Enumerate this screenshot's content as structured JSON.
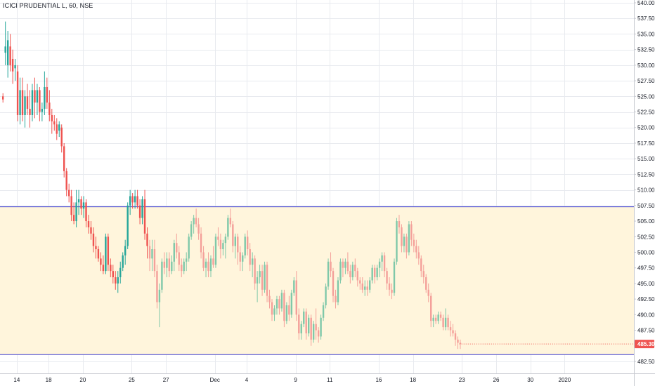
{
  "header": {
    "title": "ICICI PRUDENTIAL L, 60, NSE"
  },
  "colors": {
    "up": "#7fc8a9",
    "up_strong": "#26a69a",
    "down": "#f4a09a",
    "down_strong": "#ef5350",
    "zone_fill": "#fff5dc",
    "zone_line": "#3f3fcf",
    "last_price": "#ef5350",
    "grid": "#e8eaef",
    "axis_line": "#c8cad0",
    "text": "#131722"
  },
  "price_label": "485.30",
  "chart_data": {
    "type": "candlestick",
    "title": "ICICI PRUDENTIAL L, 60, NSE",
    "ylim": [
      481.5,
      540.0
    ],
    "y_ticks": [
      "540.00",
      "537.50",
      "535.00",
      "532.50",
      "530.00",
      "527.50",
      "525.00",
      "522.50",
      "520.00",
      "517.50",
      "515.00",
      "512.50",
      "510.00",
      "507.50",
      "505.00",
      "502.50",
      "500.00",
      "497.50",
      "495.00",
      "492.50",
      "490.00",
      "487.50",
      "485.00",
      "482.50"
    ],
    "x_ticks": [
      {
        "label": "14",
        "i": 6
      },
      {
        "label": "18",
        "i": 19
      },
      {
        "label": "20",
        "i": 33
      },
      {
        "label": "25",
        "i": 53
      },
      {
        "label": "27",
        "i": 67
      },
      {
        "label": "Dec",
        "i": 87
      },
      {
        "label": "4",
        "i": 100
      },
      {
        "label": "9",
        "i": 120
      },
      {
        "label": "11",
        "i": 134
      },
      {
        "label": "16",
        "i": 154
      },
      {
        "label": "18",
        "i": 168
      },
      {
        "label": "23",
        "i": 188
      },
      {
        "label": "26",
        "i": 202
      },
      {
        "label": "30",
        "i": 216
      },
      {
        "label": "2020",
        "i": 230
      }
    ],
    "zone": {
      "top": 507.3,
      "bottom": 483.6
    },
    "last_price": 485.3,
    "ohlc": [
      [
        525,
        525.5,
        524,
        524.5
      ],
      [
        532,
        537,
        530,
        533
      ],
      [
        530,
        535.5,
        528,
        534
      ],
      [
        533,
        535,
        529,
        530
      ],
      [
        531,
        532.5,
        527,
        529
      ],
      [
        529.5,
        531,
        527.5,
        530
      ],
      [
        529,
        530,
        521,
        522
      ],
      [
        522,
        528,
        520.5,
        526
      ],
      [
        526,
        528,
        521,
        522
      ],
      [
        522,
        526,
        520,
        525
      ],
      [
        525,
        527,
        522,
        523
      ],
      [
        523,
        526,
        520,
        522
      ],
      [
        522,
        527,
        521,
        526
      ],
      [
        526,
        528,
        521.5,
        524
      ],
      [
        524,
        527,
        522,
        526
      ],
      [
        526,
        526.5,
        521,
        522.5
      ],
      [
        522.5,
        524,
        521,
        523
      ],
      [
        523,
        529,
        522,
        526.5
      ],
      [
        526.5,
        528,
        523,
        524
      ],
      [
        524,
        526,
        521,
        522
      ],
      [
        522,
        523,
        519,
        521
      ],
      [
        521,
        522,
        519.5,
        520.5
      ],
      [
        520.5,
        521.5,
        518,
        519
      ],
      [
        519.5,
        521,
        518.5,
        520.5
      ],
      [
        520,
        520.5,
        516,
        517
      ],
      [
        517,
        517.5,
        512,
        513
      ],
      [
        513,
        513.5,
        509,
        510
      ],
      [
        510,
        511,
        508,
        509
      ],
      [
        509,
        510,
        505,
        506
      ],
      [
        506,
        508,
        504.5,
        505
      ],
      [
        505,
        510,
        504,
        508
      ],
      [
        508,
        510,
        506,
        508.5
      ],
      [
        508.5,
        509,
        506,
        507
      ],
      [
        507,
        509,
        505.5,
        508
      ],
      [
        508,
        508.5,
        504,
        505
      ],
      [
        505,
        506,
        503,
        504
      ],
      [
        504,
        505,
        502,
        503
      ],
      [
        503,
        504,
        500,
        501
      ],
      [
        501,
        502.5,
        499,
        500.5
      ],
      [
        500.5,
        501,
        498.5,
        499
      ],
      [
        499,
        500,
        497,
        498
      ],
      [
        498,
        499.5,
        496.5,
        497
      ],
      [
        497,
        503,
        496.5,
        502.5
      ],
      [
        502.5,
        503,
        497,
        498
      ],
      [
        498,
        499,
        496,
        497
      ],
      [
        497,
        498,
        495,
        496
      ],
      [
        496,
        497,
        494,
        495
      ],
      [
        495,
        497,
        493.5,
        496
      ],
      [
        496,
        498.5,
        495,
        497.5
      ],
      [
        497.5,
        500,
        497,
        499.5
      ],
      [
        499.5,
        502,
        498,
        501
      ],
      [
        501,
        508,
        500.5,
        507.5
      ],
      [
        507.5,
        510,
        506,
        509
      ],
      [
        509,
        509.5,
        507,
        508
      ],
      [
        508,
        510,
        507,
        509
      ],
      [
        509,
        510,
        507,
        507.5
      ],
      [
        507.5,
        508.5,
        504.5,
        505.5
      ],
      [
        505.5,
        509,
        504.5,
        508.5
      ],
      [
        508.5,
        510,
        502,
        503
      ],
      [
        503,
        504,
        499,
        501
      ],
      [
        501,
        502,
        497,
        499
      ],
      [
        499,
        502,
        497,
        500.5
      ],
      [
        500.5,
        502,
        496,
        497
      ],
      [
        497,
        498,
        491,
        492
      ],
      [
        492,
        495,
        488,
        494
      ],
      [
        494,
        499,
        493.5,
        498.5
      ],
      [
        498.5,
        500,
        496.5,
        497.5
      ],
      [
        497.5,
        500,
        496,
        499
      ],
      [
        499,
        500,
        496,
        497
      ],
      [
        497,
        499.5,
        496.5,
        498.5
      ],
      [
        498.5,
        502,
        497,
        501.5
      ],
      [
        501.5,
        503,
        499,
        500
      ],
      [
        500,
        501,
        497,
        498
      ],
      [
        498,
        499,
        496,
        497
      ],
      [
        497,
        499,
        496.5,
        498.5
      ],
      [
        498.5,
        500,
        497,
        499
      ],
      [
        499,
        503,
        498.5,
        502.5
      ],
      [
        502.5,
        505,
        502,
        504.5
      ],
      [
        504.5,
        506,
        503,
        505.5
      ],
      [
        505.5,
        507,
        504,
        504.5
      ],
      [
        504.5,
        505.5,
        502,
        503
      ],
      [
        503,
        504,
        499,
        500
      ],
      [
        500,
        501,
        497,
        497.5
      ],
      [
        497.5,
        499,
        496,
        498.5
      ],
      [
        498.5,
        500,
        496,
        497
      ],
      [
        497,
        499.5,
        496,
        499
      ],
      [
        499,
        501,
        497.5,
        498
      ],
      [
        498,
        503,
        497.5,
        502.5
      ],
      [
        502.5,
        504,
        501,
        502
      ],
      [
        502,
        503,
        499,
        500.5
      ],
      [
        500.5,
        502,
        499.5,
        501.5
      ],
      [
        501.5,
        503,
        499,
        502.5
      ],
      [
        502.5,
        506,
        502,
        505.5
      ],
      [
        505.5,
        507,
        504,
        504.5
      ],
      [
        504.5,
        505,
        500,
        501
      ],
      [
        501,
        503,
        499,
        502.5
      ],
      [
        502.5,
        503,
        498,
        500
      ],
      [
        500,
        501,
        497,
        498.5
      ],
      [
        498.5,
        500,
        497,
        499.5
      ],
      [
        499.5,
        503,
        499,
        502.5
      ],
      [
        502.5,
        503.5,
        499.5,
        500.5
      ],
      [
        500.5,
        501.5,
        497,
        498
      ],
      [
        498,
        500,
        496,
        499
      ],
      [
        499,
        499.5,
        494,
        495
      ],
      [
        495,
        497,
        492,
        496
      ],
      [
        496,
        498,
        495,
        497
      ],
      [
        497,
        498,
        493,
        494
      ],
      [
        494,
        498.5,
        493.5,
        498
      ],
      [
        498,
        498.5,
        492,
        493
      ],
      [
        493,
        494,
        491,
        492
      ],
      [
        492,
        492.5,
        489,
        490
      ],
      [
        490,
        491.5,
        489,
        491
      ],
      [
        491,
        493,
        490,
        492.5
      ],
      [
        492.5,
        493,
        490,
        491
      ],
      [
        491,
        494,
        490.5,
        493.5
      ],
      [
        493.5,
        494,
        488,
        489
      ],
      [
        489,
        492,
        488.5,
        491.5
      ],
      [
        491.5,
        493,
        489,
        490
      ],
      [
        490,
        494,
        489.5,
        493.5
      ],
      [
        493.5,
        496,
        493,
        495.5
      ],
      [
        495.5,
        497,
        489,
        490
      ],
      [
        490,
        491,
        486,
        487
      ],
      [
        487,
        489,
        486,
        488.5
      ],
      [
        488.5,
        491,
        488,
        490.5
      ],
      [
        490.5,
        491,
        486,
        487
      ],
      [
        487,
        490,
        486.5,
        489.5
      ],
      [
        489.5,
        490,
        485,
        486
      ],
      [
        486,
        489,
        485.5,
        488.5
      ],
      [
        488.5,
        491,
        486,
        487.5
      ],
      [
        487.5,
        488,
        485.5,
        486.5
      ],
      [
        486.5,
        490,
        486,
        489.5
      ],
      [
        489.5,
        492,
        489,
        491.5
      ],
      [
        491.5,
        495,
        491,
        494.5
      ],
      [
        494.5,
        499,
        494,
        498.5
      ],
      [
        498.5,
        500,
        496,
        497
      ],
      [
        497,
        497.5,
        492,
        493
      ],
      [
        493,
        494,
        491,
        492
      ],
      [
        492,
        496,
        491.5,
        495.5
      ],
      [
        495.5,
        499,
        495,
        498.5
      ],
      [
        498.5,
        499,
        496,
        497.5
      ],
      [
        497.5,
        499,
        496.5,
        498.5
      ],
      [
        498.5,
        500,
        496.5,
        497
      ],
      [
        497,
        498,
        495,
        496
      ],
      [
        496,
        498.5,
        495.5,
        498
      ],
      [
        498,
        499,
        496,
        497
      ],
      [
        497,
        497.5,
        494.5,
        495.5
      ],
      [
        495.5,
        496,
        494,
        495
      ],
      [
        495,
        496,
        493.5,
        494
      ],
      [
        494,
        495.5,
        493,
        494.5
      ],
      [
        494.5,
        495.5,
        493,
        494
      ],
      [
        494,
        496,
        493.5,
        495.5
      ],
      [
        495.5,
        498,
        495,
        497.5
      ],
      [
        497.5,
        498,
        495,
        496
      ],
      [
        496,
        498,
        495.5,
        497.5
      ],
      [
        497.5,
        499,
        496,
        498.5
      ],
      [
        498.5,
        500,
        497,
        499.5
      ],
      [
        499.5,
        500,
        496,
        497
      ],
      [
        497,
        497.5,
        494,
        495
      ],
      [
        495,
        496,
        493,
        494
      ],
      [
        494,
        495,
        492.5,
        493.5
      ],
      [
        493.5,
        499,
        493,
        498.5
      ],
      [
        498.5,
        505.5,
        498,
        505
      ],
      [
        505,
        506,
        503,
        504
      ],
      [
        504,
        504.5,
        500,
        501
      ],
      [
        501,
        503,
        500,
        502.5
      ],
      [
        502.5,
        503,
        499,
        500
      ],
      [
        500,
        505,
        499.5,
        504.5
      ],
      [
        504.5,
        505,
        501,
        502
      ],
      [
        502,
        503,
        500,
        501
      ],
      [
        501,
        502,
        499,
        500
      ],
      [
        500,
        501,
        498,
        499
      ],
      [
        499,
        499.5,
        496,
        497
      ],
      [
        497,
        498,
        495,
        496
      ],
      [
        496,
        496.5,
        493.5,
        494
      ],
      [
        494,
        495,
        492,
        493
      ],
      [
        493,
        493.5,
        488,
        489
      ],
      [
        489,
        490,
        488,
        489.5
      ],
      [
        489.5,
        490,
        488.5,
        489
      ],
      [
        489,
        490.5,
        488.5,
        490
      ],
      [
        490,
        490.5,
        489,
        489.5
      ],
      [
        489.5,
        490,
        487.5,
        488
      ],
      [
        488,
        491,
        487.5,
        489.5
      ],
      [
        489.5,
        490,
        487.5,
        488
      ],
      [
        488,
        489,
        486.5,
        487.5
      ],
      [
        487.5,
        488.5,
        486.5,
        487
      ],
      [
        487,
        487.5,
        485,
        486
      ],
      [
        486,
        486.5,
        484.5,
        485.5
      ],
      [
        485.5,
        486,
        484.5,
        485.3
      ]
    ]
  }
}
